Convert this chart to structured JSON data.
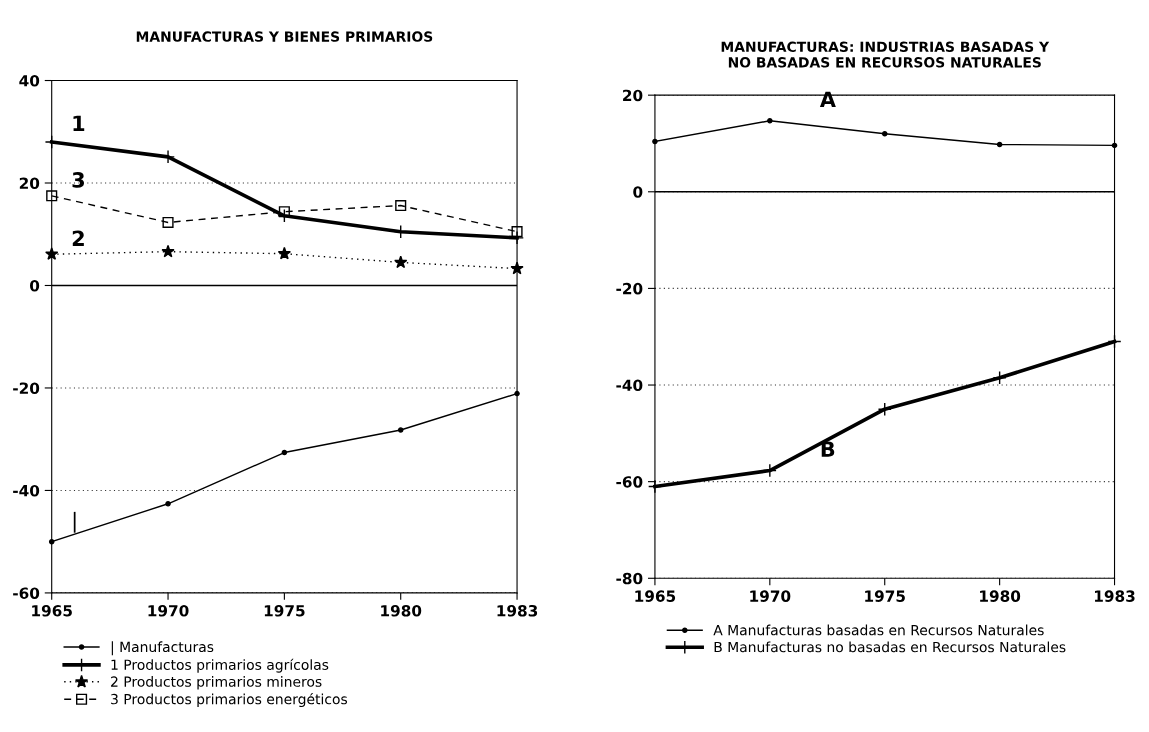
{
  "chart_data": [
    {
      "type": "line",
      "title": "MANUFACTURAS Y BIENES PRIMARIOS",
      "categories": [
        "1965",
        "1970",
        "1975",
        "1980",
        "1983"
      ],
      "series": [
        {
          "name": "| Manufacturas",
          "color": "#000000",
          "marker": "circle",
          "line_style": "solid",
          "values": [
            -50,
            -42.6,
            -32.6,
            -28.2,
            -21.1
          ]
        },
        {
          "name": "1 Productos primarios agrícolas",
          "color": "#000000",
          "marker": "cross",
          "line_style": "solid",
          "values": [
            28,
            25.1,
            13.6,
            10.5,
            9.3
          ]
        },
        {
          "name": "2 Productos primarios mineros",
          "color": "#000000",
          "marker": "star",
          "line_style": "dotted",
          "values": [
            6.1,
            6.6,
            6.2,
            4.5,
            3.3
          ]
        },
        {
          "name": "3 Productos primarios energéticos",
          "color": "#000000",
          "marker": "square",
          "line_style": "dashed",
          "values": [
            17.5,
            12.3,
            14.4,
            15.6,
            10.5
          ]
        }
      ],
      "annotations": [
        {
          "text": "1",
          "x": "1965",
          "y": 28
        },
        {
          "text": "3",
          "x": "1965",
          "y": 17.5
        },
        {
          "text": "2",
          "x": "1965",
          "y": 6.1
        },
        {
          "text": "|",
          "x": "1965",
          "y": -50
        }
      ],
      "ylim": [
        -60,
        40
      ],
      "yticks": [
        -60,
        -40,
        -20,
        0,
        20,
        40
      ],
      "grid": "y",
      "ref_lines": [
        {
          "axis": "y",
          "value": 0,
          "color": "#000000",
          "line_style": "solid"
        }
      ],
      "legend": "bottom"
    },
    {
      "type": "line",
      "title": "MANUFACTURAS: INDUSTRIAS BASADAS Y\nNO BASADAS EN RECURSOS NATURALES",
      "categories": [
        "1965",
        "1970",
        "1975",
        "1980",
        "1983"
      ],
      "series": [
        {
          "name": "A Manufacturas basadas en Recursos Naturales",
          "color": "#000000",
          "marker": "circle",
          "line_style": "solid",
          "values": [
            10.4,
            14.7,
            12.0,
            9.8,
            9.6
          ]
        },
        {
          "name": "B Manufacturas no basadas en Recursos Naturales",
          "color": "#000000",
          "marker": "cross",
          "line_style": "solid",
          "values": [
            -61,
            -57.7,
            -45.0,
            -38.5,
            -31
          ]
        }
      ],
      "annotations": [
        {
          "text": "A",
          "x": "1970",
          "y": 14.7
        },
        {
          "text": "B",
          "x": "1970",
          "y": -57.7
        }
      ],
      "ylim": [
        -80,
        20
      ],
      "yticks": [
        -80,
        -60,
        -40,
        -20,
        0,
        20
      ],
      "grid": "y",
      "ref_lines": [
        {
          "axis": "y",
          "value": 0,
          "color": "#000000",
          "line_style": "solid"
        }
      ],
      "legend": "bottom"
    }
  ]
}
